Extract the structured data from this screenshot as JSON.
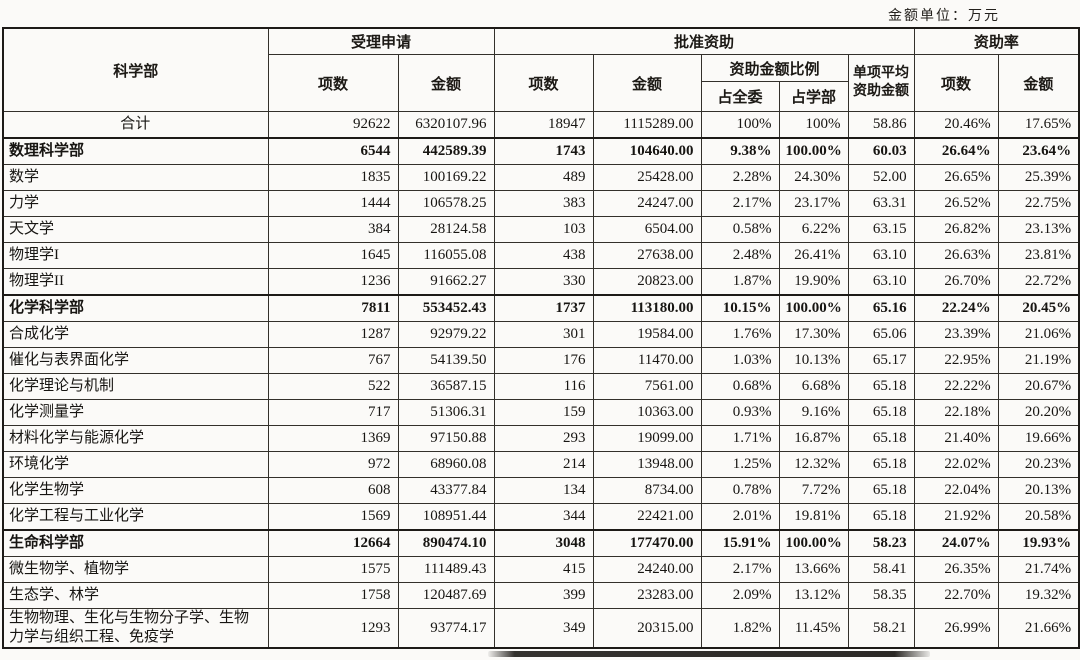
{
  "page": {
    "unit_label": "金额单位：万元"
  },
  "table": {
    "header": {
      "department": "科学部",
      "accepted_group": "受理申请",
      "approved_group": "批准资助",
      "rate_group": "资助率",
      "items_label": "项数",
      "amount_label": "金额",
      "ratio_group": "资助金额比例",
      "ratio_committee": "占全委",
      "ratio_department": "占学部",
      "avg_amount": "单项平均资助金额"
    },
    "rows": [
      {
        "type": "total",
        "name": "合计",
        "accepted_items": "92622",
        "accepted_amount": "6320107.96",
        "approved_items": "18947",
        "approved_amount": "1115289.00",
        "ratio_committee": "100%",
        "ratio_department": "100%",
        "avg_amount": "58.86",
        "rate_items": "20.46%",
        "rate_amount": "17.65%"
      },
      {
        "type": "section",
        "name": "数理科学部",
        "accepted_items": "6544",
        "accepted_amount": "442589.39",
        "approved_items": "1743",
        "approved_amount": "104640.00",
        "ratio_committee": "9.38%",
        "ratio_department": "100.00%",
        "avg_amount": "60.03",
        "rate_items": "26.64%",
        "rate_amount": "23.64%"
      },
      {
        "type": "item",
        "name": "数学",
        "accepted_items": "1835",
        "accepted_amount": "100169.22",
        "approved_items": "489",
        "approved_amount": "25428.00",
        "ratio_committee": "2.28%",
        "ratio_department": "24.30%",
        "avg_amount": "52.00",
        "rate_items": "26.65%",
        "rate_amount": "25.39%"
      },
      {
        "type": "item",
        "name": "力学",
        "accepted_items": "1444",
        "accepted_amount": "106578.25",
        "approved_items": "383",
        "approved_amount": "24247.00",
        "ratio_committee": "2.17%",
        "ratio_department": "23.17%",
        "avg_amount": "63.31",
        "rate_items": "26.52%",
        "rate_amount": "22.75%"
      },
      {
        "type": "item",
        "name": "天文学",
        "accepted_items": "384",
        "accepted_amount": "28124.58",
        "approved_items": "103",
        "approved_amount": "6504.00",
        "ratio_committee": "0.58%",
        "ratio_department": "6.22%",
        "avg_amount": "63.15",
        "rate_items": "26.82%",
        "rate_amount": "23.13%"
      },
      {
        "type": "item",
        "name": "物理学I",
        "accepted_items": "1645",
        "accepted_amount": "116055.08",
        "approved_items": "438",
        "approved_amount": "27638.00",
        "ratio_committee": "2.48%",
        "ratio_department": "26.41%",
        "avg_amount": "63.10",
        "rate_items": "26.63%",
        "rate_amount": "23.81%"
      },
      {
        "type": "item",
        "name": "物理学II",
        "accepted_items": "1236",
        "accepted_amount": "91662.27",
        "approved_items": "330",
        "approved_amount": "20823.00",
        "ratio_committee": "1.87%",
        "ratio_department": "19.90%",
        "avg_amount": "63.10",
        "rate_items": "26.70%",
        "rate_amount": "22.72%"
      },
      {
        "type": "section",
        "name": "化学科学部",
        "accepted_items": "7811",
        "accepted_amount": "553452.43",
        "approved_items": "1737",
        "approved_amount": "113180.00",
        "ratio_committee": "10.15%",
        "ratio_department": "100.00%",
        "avg_amount": "65.16",
        "rate_items": "22.24%",
        "rate_amount": "20.45%"
      },
      {
        "type": "item",
        "name": "合成化学",
        "accepted_items": "1287",
        "accepted_amount": "92979.22",
        "approved_items": "301",
        "approved_amount": "19584.00",
        "ratio_committee": "1.76%",
        "ratio_department": "17.30%",
        "avg_amount": "65.06",
        "rate_items": "23.39%",
        "rate_amount": "21.06%"
      },
      {
        "type": "item",
        "name": "催化与表界面化学",
        "accepted_items": "767",
        "accepted_amount": "54139.50",
        "approved_items": "176",
        "approved_amount": "11470.00",
        "ratio_committee": "1.03%",
        "ratio_department": "10.13%",
        "avg_amount": "65.17",
        "rate_items": "22.95%",
        "rate_amount": "21.19%"
      },
      {
        "type": "item",
        "name": "化学理论与机制",
        "accepted_items": "522",
        "accepted_amount": "36587.15",
        "approved_items": "116",
        "approved_amount": "7561.00",
        "ratio_committee": "0.68%",
        "ratio_department": "6.68%",
        "avg_amount": "65.18",
        "rate_items": "22.22%",
        "rate_amount": "20.67%"
      },
      {
        "type": "item",
        "name": "化学测量学",
        "accepted_items": "717",
        "accepted_amount": "51306.31",
        "approved_items": "159",
        "approved_amount": "10363.00",
        "ratio_committee": "0.93%",
        "ratio_department": "9.16%",
        "avg_amount": "65.18",
        "rate_items": "22.18%",
        "rate_amount": "20.20%"
      },
      {
        "type": "item",
        "name": "材料化学与能源化学",
        "accepted_items": "1369",
        "accepted_amount": "97150.88",
        "approved_items": "293",
        "approved_amount": "19099.00",
        "ratio_committee": "1.71%",
        "ratio_department": "16.87%",
        "avg_amount": "65.18",
        "rate_items": "21.40%",
        "rate_amount": "19.66%"
      },
      {
        "type": "item",
        "name": "环境化学",
        "accepted_items": "972",
        "accepted_amount": "68960.08",
        "approved_items": "214",
        "approved_amount": "13948.00",
        "ratio_committee": "1.25%",
        "ratio_department": "12.32%",
        "avg_amount": "65.18",
        "rate_items": "22.02%",
        "rate_amount": "20.23%"
      },
      {
        "type": "item",
        "name": "化学生物学",
        "accepted_items": "608",
        "accepted_amount": "43377.84",
        "approved_items": "134",
        "approved_amount": "8734.00",
        "ratio_committee": "0.78%",
        "ratio_department": "7.72%",
        "avg_amount": "65.18",
        "rate_items": "22.04%",
        "rate_amount": "20.13%"
      },
      {
        "type": "item",
        "name": "化学工程与工业化学",
        "accepted_items": "1569",
        "accepted_amount": "108951.44",
        "approved_items": "344",
        "approved_amount": "22421.00",
        "ratio_committee": "2.01%",
        "ratio_department": "19.81%",
        "avg_amount": "65.18",
        "rate_items": "21.92%",
        "rate_amount": "20.58%"
      },
      {
        "type": "section",
        "name": "生命科学部",
        "accepted_items": "12664",
        "accepted_amount": "890474.10",
        "approved_items": "3048",
        "approved_amount": "177470.00",
        "ratio_committee": "15.91%",
        "ratio_department": "100.00%",
        "avg_amount": "58.23",
        "rate_items": "24.07%",
        "rate_amount": "19.93%"
      },
      {
        "type": "item",
        "name": "微生物学、植物学",
        "accepted_items": "1575",
        "accepted_amount": "111489.43",
        "approved_items": "415",
        "approved_amount": "24240.00",
        "ratio_committee": "2.17%",
        "ratio_department": "13.66%",
        "avg_amount": "58.41",
        "rate_items": "26.35%",
        "rate_amount": "21.74%"
      },
      {
        "type": "item",
        "name": "生态学、林学",
        "accepted_items": "1758",
        "accepted_amount": "120487.69",
        "approved_items": "399",
        "approved_amount": "23283.00",
        "ratio_committee": "2.09%",
        "ratio_department": "13.12%",
        "avg_amount": "58.35",
        "rate_items": "22.70%",
        "rate_amount": "19.32%"
      },
      {
        "type": "item",
        "name": "生物物理、生化与生物分子学、生物力学与组织工程、免疫学",
        "accepted_items": "1293",
        "accepted_amount": "93774.17",
        "approved_items": "349",
        "approved_amount": "20315.00",
        "ratio_committee": "1.82%",
        "ratio_department": "11.45%",
        "avg_amount": "58.21",
        "rate_items": "26.99%",
        "rate_amount": "21.66%"
      }
    ]
  }
}
